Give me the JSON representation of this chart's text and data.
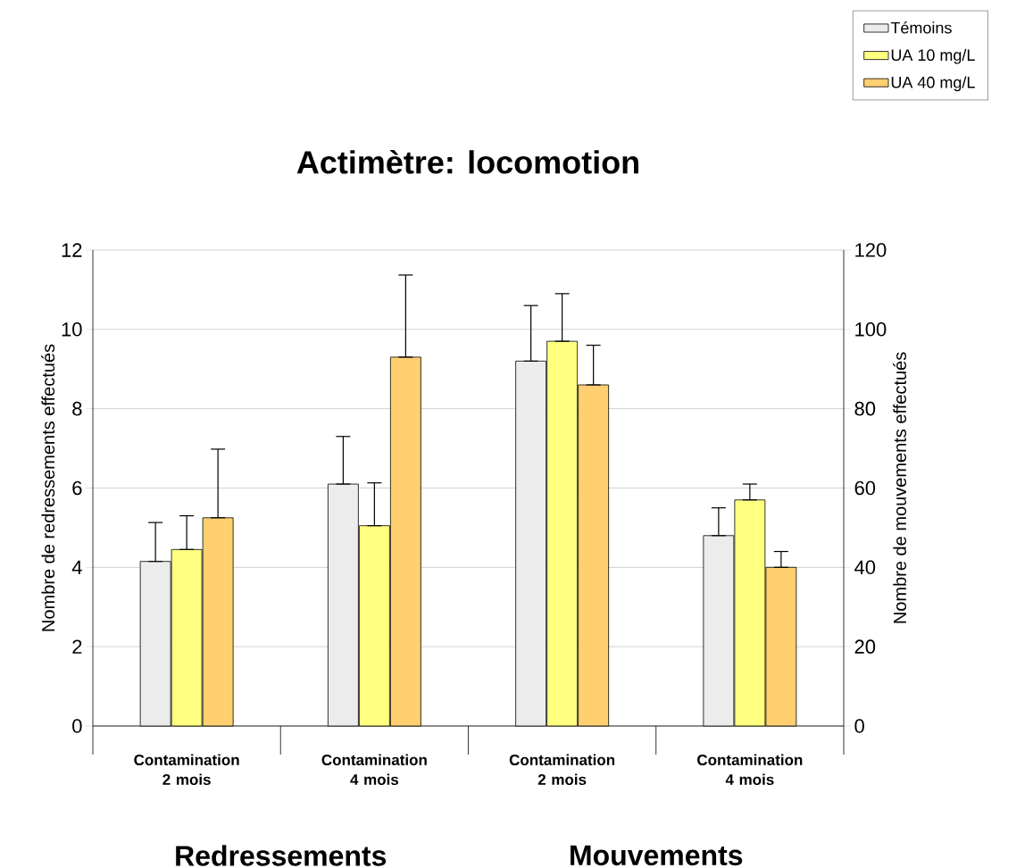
{
  "chart_data": {
    "type": "bar",
    "title": "Actimètre: locomotion",
    "categories": [
      "Contamination 2 mois",
      "Contamination 4 mois",
      "Contamination 2 mois",
      "Contamination 4 mois"
    ],
    "series": [
      {
        "name": "Témoins",
        "color": "#ececec",
        "axis": "y",
        "values": [
          4.15,
          6.1,
          null,
          null
        ],
        "errors": [
          [
            4.15,
            5.13
          ],
          [
            6.1,
            7.3
          ],
          null,
          null
        ]
      },
      {
        "name": "UA 10 mg/L",
        "color": "#ffff80",
        "axis": "y",
        "values": [
          4.45,
          5.05,
          null,
          null
        ],
        "errors": [
          [
            4.45,
            5.3
          ],
          [
            5.05,
            6.13
          ],
          null,
          null
        ]
      },
      {
        "name": "UA 40 mg/L",
        "color": "#ffcf70",
        "axis": "y",
        "values": [
          5.25,
          9.3,
          null,
          null
        ],
        "errors": [
          [
            5.25,
            6.98
          ],
          [
            9.3,
            11.37
          ],
          null,
          null
        ]
      },
      {
        "color": "#ececec",
        "axis": "y2",
        "values": [
          null,
          null,
          92,
          48
        ],
        "errors": [
          null,
          null,
          [
            92,
            106
          ],
          [
            48,
            55
          ]
        ]
      },
      {
        "color": "#ffff80",
        "axis": "y2",
        "values": [
          null,
          null,
          97,
          57
        ],
        "errors": [
          null,
          null,
          [
            97,
            109
          ],
          [
            57,
            61
          ]
        ]
      },
      {
        "color": "#ffcf70",
        "axis": "y2",
        "values": [
          null,
          null,
          86,
          40
        ],
        "errors": [
          null,
          null,
          [
            86,
            96
          ],
          [
            40,
            44
          ]
        ]
      }
    ],
    "ylabel": "Nombre de redressements effectués",
    "y2label": "Nombre de mouvements effectués",
    "ylim": [
      0,
      12
    ],
    "yticks": [
      0,
      2,
      4,
      6,
      8,
      10,
      12
    ],
    "y2lim": [
      0,
      120
    ],
    "y2ticks": [
      0,
      20,
      40,
      60,
      80,
      100,
      120
    ],
    "annotations": [
      "Redressements",
      "Mouvements"
    ],
    "legend": "top right",
    "grid": "y"
  }
}
